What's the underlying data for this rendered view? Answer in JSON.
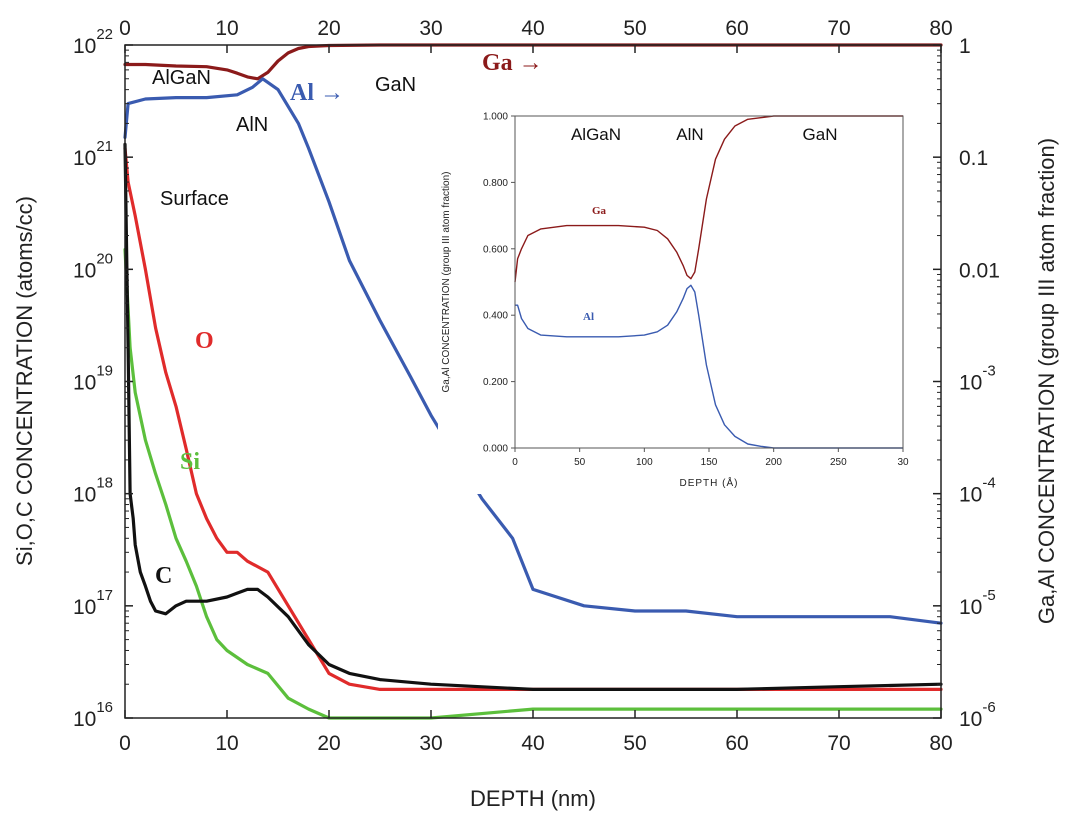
{
  "chart_data": [
    {
      "type": "line",
      "title": "",
      "xlabel": "DEPTH (nm)",
      "ylabel": "Si,O,C CONCENTRATION (atoms/cc)",
      "y2label": "Ga,Al CONCENTRATION (group III atom fraction)",
      "xlim": [
        0,
        80
      ],
      "ylim": [
        1e+16,
        1e+22
      ],
      "y2lim": [
        1e-06,
        1
      ],
      "yscale": "log",
      "y2scale": "log",
      "x_ticks": [
        "0",
        "10",
        "20",
        "30",
        "40",
        "50",
        "60",
        "70",
        "80"
      ],
      "x_top_ticks": [
        "0",
        "10",
        "20",
        "30",
        "40",
        "50",
        "60",
        "70",
        "80"
      ],
      "y_ticks": [
        {
          "base": "10",
          "exp": "22"
        },
        {
          "base": "10",
          "exp": "21"
        },
        {
          "base": "10",
          "exp": "20"
        },
        {
          "base": "10",
          "exp": "19"
        },
        {
          "base": "10",
          "exp": "18"
        },
        {
          "base": "10",
          "exp": "17"
        },
        {
          "base": "10",
          "exp": "16"
        }
      ],
      "y2_ticks": [
        {
          "base": "1",
          "exp": ""
        },
        {
          "base": "0.1",
          "exp": ""
        },
        {
          "base": "0.01",
          "exp": ""
        },
        {
          "base": "10",
          "exp": "-3"
        },
        {
          "base": "10",
          "exp": "-4"
        },
        {
          "base": "10",
          "exp": "-5"
        },
        {
          "base": "10",
          "exp": "-6"
        }
      ],
      "annotations": {
        "algan": "AlGaN",
        "aln": "AlN",
        "gan": "GaN",
        "surface": "Surface",
        "ga_arrow": "Ga →",
        "al_arrow": "Al →",
        "o": "O",
        "si": "Si",
        "c": "C"
      },
      "series": [
        {
          "name": "Ga",
          "axis": "right",
          "color": "#8b1a1a",
          "x": [
            0,
            2,
            5,
            8,
            10,
            11,
            12,
            13,
            14,
            15,
            16,
            17,
            18,
            20,
            25,
            30,
            40,
            50,
            60,
            70,
            80
          ],
          "y": [
            0.67,
            0.67,
            0.65,
            0.64,
            0.6,
            0.56,
            0.52,
            0.5,
            0.57,
            0.72,
            0.85,
            0.93,
            0.97,
            0.99,
            1.0,
            1.0,
            1.0,
            1.0,
            1.0,
            1.0,
            1.0
          ]
        },
        {
          "name": "Al",
          "axis": "right",
          "color": "#3a5bb0",
          "x": [
            0,
            0.3,
            2,
            5,
            8,
            11,
            12.5,
            13.5,
            15,
            17,
            18,
            20,
            22,
            25,
            28,
            30,
            32,
            35,
            38,
            40,
            45,
            50,
            55,
            60,
            65,
            70,
            75,
            80
          ],
          "y": [
            0.15,
            0.3,
            0.33,
            0.34,
            0.34,
            0.36,
            0.42,
            0.5,
            0.4,
            0.2,
            0.12,
            0.04,
            0.012,
            0.0035,
            0.0011,
            0.0005,
            0.00025,
            9e-05,
            4e-05,
            1.4e-05,
            1e-05,
            9e-06,
            9e-06,
            8e-06,
            8e-06,
            8e-06,
            8e-06,
            7e-06
          ]
        },
        {
          "name": "O",
          "axis": "left",
          "color": "#e02b2b",
          "x": [
            0,
            0.3,
            1,
            2,
            3,
            4,
            5,
            6,
            7,
            8,
            9,
            10,
            11,
            12,
            14,
            16,
            18,
            20,
            22,
            25,
            30,
            40,
            50,
            60,
            70,
            80
          ],
          "y": [
            1.2e+21,
            6e+20,
            3e+20,
            1e+20,
            3e+19,
            1.2e+19,
            6e+18,
            2.5e+18,
            1e+18,
            6e+17,
            4e+17,
            3e+17,
            3e+17,
            2.5e+17,
            2e+17,
            1e+17,
            5e+16,
            2.5e+16,
            2e+16,
            1.8e+16,
            1.8e+16,
            1.8e+16,
            1.8e+16,
            1.8e+16,
            1.8e+16,
            1.8e+16
          ]
        },
        {
          "name": "Si",
          "axis": "left",
          "color": "#5cbf3c",
          "x": [
            0,
            0.5,
            1,
            2,
            3,
            4,
            5,
            6,
            7,
            8,
            9,
            10,
            12,
            14,
            16,
            18,
            20,
            25,
            30,
            40,
            50,
            60,
            70,
            80
          ],
          "y": [
            1.5e+20,
            2e+19,
            8e+18,
            3e+18,
            1.5e+18,
            8e+17,
            4e+17,
            2.5e+17,
            1.5e+17,
            8e+16,
            5e+16,
            4e+16,
            3e+16,
            2.5e+16,
            1.5e+16,
            1.2e+16,
            1e+16,
            1e+16,
            1e+16,
            1.2e+16,
            1.2e+16,
            1.2e+16,
            1.2e+16,
            1.2e+16
          ]
        },
        {
          "name": "C",
          "axis": "left",
          "color": "#111111",
          "x": [
            0,
            0.3,
            0.5,
            0.8,
            1,
            1.5,
            2,
            2.5,
            3,
            4,
            5,
            6,
            8,
            10,
            11,
            12,
            13,
            14,
            16,
            18,
            20,
            22,
            25,
            30,
            40,
            50,
            60,
            70,
            80
          ],
          "y": [
            1.3e+21,
            2e+19,
            1e+18,
            6e+17,
            3.5e+17,
            2e+17,
            1.5e+17,
            1.1e+17,
            9e+16,
            8.5e+16,
            1e+17,
            1.1e+17,
            1.1e+17,
            1.2e+17,
            1.3e+17,
            1.4e+17,
            1.4e+17,
            1.2e+17,
            8e+16,
            4.5e+16,
            3e+16,
            2.5e+16,
            2.2e+16,
            2e+16,
            1.8e+16,
            1.8e+16,
            1.8e+16,
            1.9e+16,
            2e+16
          ]
        }
      ]
    },
    {
      "type": "line",
      "title": "",
      "xlabel": "DEPTH (Å)",
      "ylabel": "Ga,Al CONCENTRATION (group III atom fraction)",
      "xlim": [
        0,
        300
      ],
      "ylim": [
        0,
        1
      ],
      "x_ticks": [
        "0",
        "50",
        "100",
        "150",
        "200",
        "250",
        "30"
      ],
      "y_ticks": [
        "0.000",
        "0.200",
        "0.400",
        "0.600",
        "0.800",
        "1.000"
      ],
      "annotations": {
        "algan": "AlGaN",
        "aln": "AlN",
        "gan": "GaN",
        "ga": "Ga",
        "al": "Al"
      },
      "series": [
        {
          "name": "Ga",
          "color": "#8b1a1a",
          "x": [
            0,
            2,
            5,
            10,
            20,
            40,
            60,
            80,
            100,
            110,
            118,
            125,
            130,
            133,
            136,
            139,
            142,
            148,
            155,
            162,
            170,
            180,
            190,
            200,
            210,
            250,
            300
          ],
          "y": [
            0.5,
            0.57,
            0.6,
            0.64,
            0.66,
            0.67,
            0.67,
            0.67,
            0.665,
            0.655,
            0.63,
            0.59,
            0.55,
            0.52,
            0.51,
            0.53,
            0.6,
            0.75,
            0.87,
            0.93,
            0.97,
            0.99,
            0.995,
            1.0,
            1.0,
            1.0,
            1.0
          ]
        },
        {
          "name": "Al",
          "color": "#3a5bb0",
          "x": [
            0,
            2,
            5,
            10,
            20,
            40,
            60,
            80,
            100,
            110,
            118,
            125,
            130,
            133,
            136,
            139,
            142,
            148,
            155,
            162,
            170,
            180,
            190,
            200,
            210,
            250,
            300
          ],
          "y": [
            0.43,
            0.43,
            0.39,
            0.36,
            0.34,
            0.335,
            0.335,
            0.335,
            0.34,
            0.35,
            0.37,
            0.41,
            0.45,
            0.48,
            0.49,
            0.47,
            0.4,
            0.25,
            0.13,
            0.07,
            0.035,
            0.012,
            0.005,
            0.0,
            0.0,
            0.0,
            0.0
          ]
        }
      ]
    }
  ]
}
